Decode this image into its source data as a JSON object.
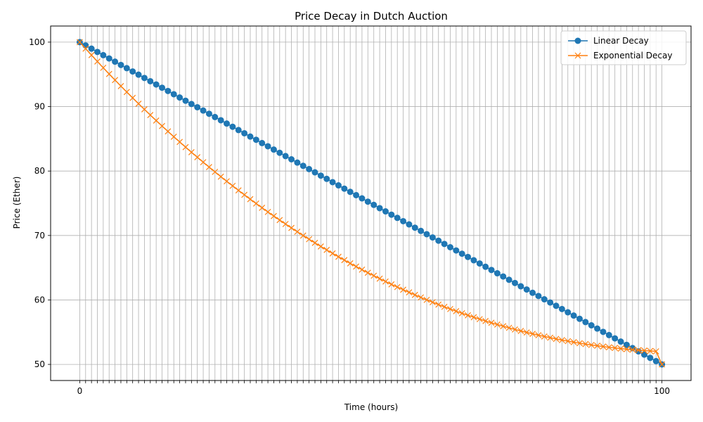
{
  "chart_data": {
    "type": "line",
    "title": "Price Decay in Dutch Auction",
    "xlabel": "Time (hours)",
    "ylabel": "Price (Ether)",
    "x": [
      0,
      1.01,
      2.02,
      3.03,
      4.04,
      5.05,
      6.06,
      7.07,
      8.08,
      9.09,
      10.1,
      11.11,
      12.12,
      13.13,
      14.14,
      15.15,
      16.16,
      17.17,
      18.18,
      19.19,
      20.2,
      21.21,
      22.22,
      23.23,
      24.24,
      25.25,
      26.26,
      27.27,
      28.28,
      29.29,
      30.3,
      31.31,
      32.32,
      33.33,
      34.34,
      35.35,
      36.36,
      37.37,
      38.38,
      39.39,
      40.4,
      41.41,
      42.42,
      43.43,
      44.44,
      45.45,
      46.46,
      47.47,
      48.48,
      49.49,
      50.51,
      51.52,
      52.53,
      53.54,
      54.55,
      55.56,
      56.57,
      57.58,
      58.59,
      59.6,
      60.61,
      61.62,
      62.63,
      63.64,
      64.65,
      65.66,
      66.67,
      67.68,
      68.69,
      69.7,
      70.71,
      71.72,
      72.73,
      73.74,
      74.75,
      75.76,
      76.77,
      77.78,
      78.79,
      79.8,
      80.81,
      81.82,
      82.83,
      83.84,
      84.85,
      85.86,
      86.87,
      87.88,
      88.89,
      89.9,
      90.91,
      91.92,
      92.93,
      93.94,
      94.95,
      95.96,
      96.97,
      97.98,
      98.99,
      100
    ],
    "x_tick_labels_visible": [
      "0",
      "100"
    ],
    "y_ticks": [
      50,
      60,
      70,
      80,
      90,
      100
    ],
    "ylim": [
      47.5,
      102.5
    ],
    "xlim": [
      -5,
      105
    ],
    "grid": true,
    "legend": "top-right",
    "series": [
      {
        "name": "Linear Decay",
        "marker": "o",
        "color": "#1f77b4",
        "values": [
          100,
          99.49,
          98.99,
          98.48,
          97.98,
          97.47,
          96.97,
          96.46,
          95.96,
          95.45,
          94.95,
          94.44,
          93.94,
          93.43,
          92.93,
          92.42,
          91.92,
          91.41,
          90.91,
          90.4,
          89.9,
          89.39,
          88.89,
          88.38,
          87.88,
          87.37,
          86.87,
          86.36,
          85.86,
          85.35,
          84.85,
          84.34,
          83.84,
          83.33,
          82.83,
          82.32,
          81.82,
          81.31,
          80.81,
          80.3,
          79.8,
          79.29,
          78.79,
          78.28,
          77.78,
          77.27,
          76.77,
          76.26,
          75.76,
          75.25,
          74.75,
          74.24,
          73.74,
          73.23,
          72.73,
          72.22,
          71.72,
          71.21,
          70.71,
          70.2,
          69.7,
          69.19,
          68.69,
          68.18,
          67.68,
          67.17,
          66.67,
          66.16,
          65.66,
          65.15,
          64.65,
          64.14,
          63.64,
          63.13,
          62.63,
          62.12,
          61.62,
          61.11,
          60.61,
          60.1,
          59.6,
          59.09,
          58.59,
          58.08,
          57.58,
          57.07,
          56.57,
          56.06,
          55.56,
          55.05,
          54.55,
          54.04,
          53.54,
          53.03,
          52.53,
          52.02,
          51.52,
          51.01,
          50.51,
          50
        ]
      },
      {
        "name": "Exponential Decay",
        "marker": "x",
        "color": "#ff7f0e",
        "values": [
          100,
          98.99,
          97.99,
          97.0,
          96.02,
          95.06,
          94.12,
          93.18,
          92.26,
          91.35,
          90.45,
          89.57,
          88.69,
          87.83,
          86.98,
          86.15,
          85.32,
          84.51,
          83.71,
          82.92,
          82.14,
          81.37,
          80.61,
          79.87,
          79.13,
          78.41,
          77.7,
          77.0,
          76.31,
          75.63,
          74.96,
          74.3,
          73.65,
          73.02,
          72.39,
          71.78,
          71.17,
          70.58,
          69.99,
          69.42,
          68.85,
          68.3,
          67.76,
          67.22,
          66.7,
          66.18,
          65.68,
          65.18,
          64.7,
          64.22,
          63.76,
          63.3,
          62.86,
          62.42,
          62.0,
          61.58,
          61.17,
          60.78,
          60.39,
          60.01,
          59.64,
          59.28,
          58.93,
          58.59,
          58.26,
          57.93,
          57.62,
          57.31,
          57.02,
          56.73,
          56.45,
          56.18,
          55.92,
          55.67,
          55.42,
          55.19,
          54.96,
          54.74,
          54.53,
          54.33,
          54.14,
          53.95,
          53.77,
          53.61,
          53.45,
          53.29,
          53.15,
          53.01,
          52.89,
          52.77,
          52.65,
          52.55,
          52.45,
          52.36,
          52.28,
          52.21,
          52.14,
          52.08,
          52.03,
          50
        ]
      }
    ]
  }
}
